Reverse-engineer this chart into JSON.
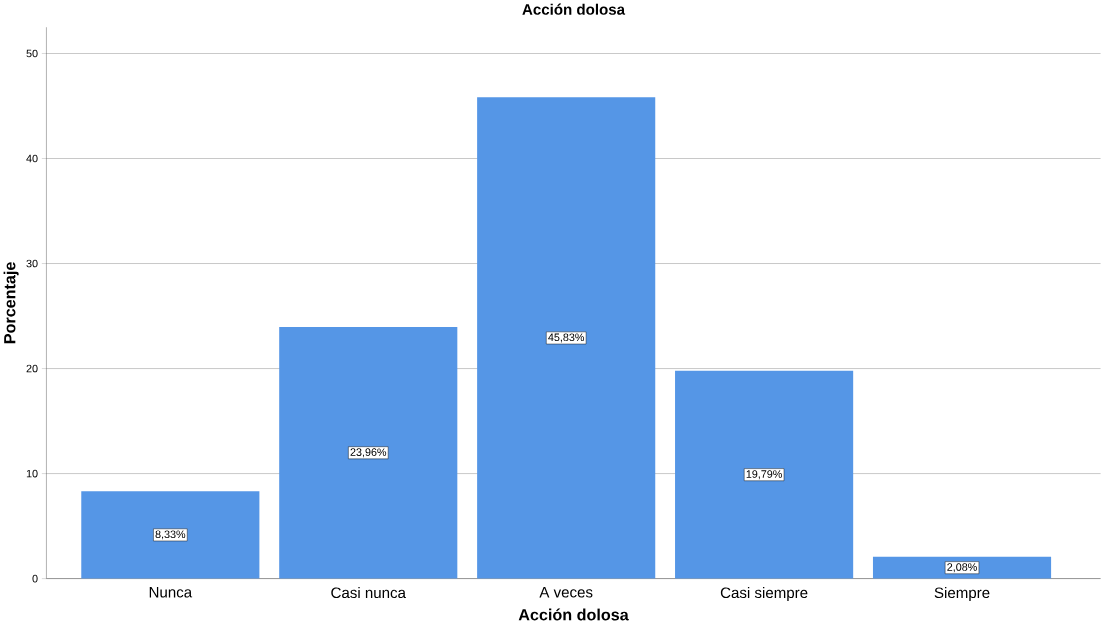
{
  "chart_data": {
    "type": "bar",
    "title": "Acción dolosa",
    "xlabel": "Acción dolosa",
    "ylabel": "Porcentaje",
    "categories": [
      "Nunca",
      "Casi nunca",
      "A veces",
      "Casi siempre",
      "Siempre"
    ],
    "values": [
      8.33,
      23.96,
      45.83,
      19.79,
      2.08
    ],
    "value_labels": [
      "8,33%",
      "23,96%",
      "45,83%",
      "19,79%",
      "2,08%"
    ],
    "color": "#5596e6",
    "ylim": [
      0,
      52.5
    ],
    "yticks": [
      0,
      10,
      20,
      30,
      40,
      50
    ],
    "grid": "y"
  }
}
